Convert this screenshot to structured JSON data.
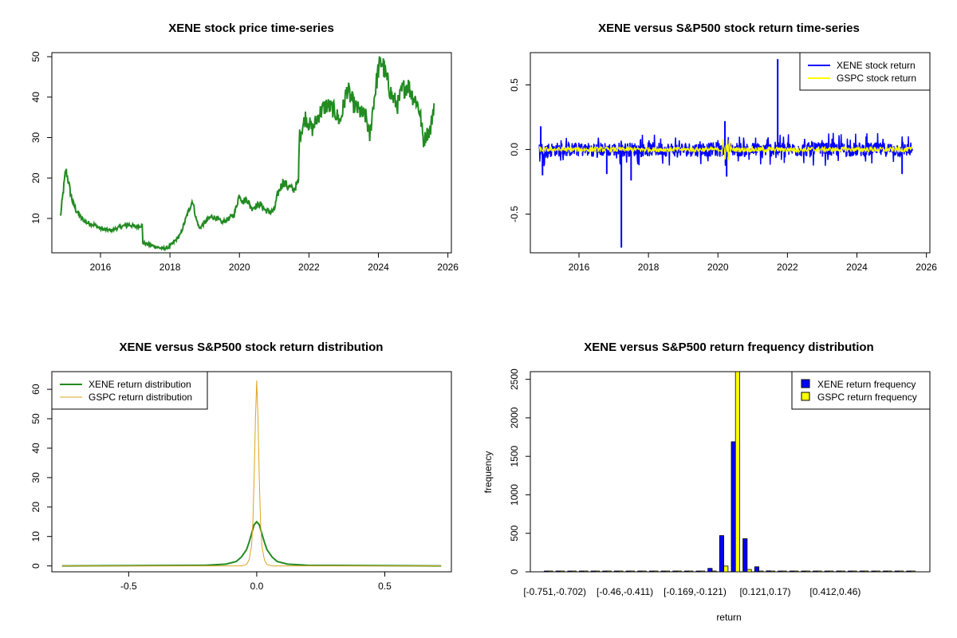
{
  "colors": {
    "green": "#228B22",
    "blue": "#0000FF",
    "yellow": "#FFFF00",
    "orange": "#DAA520",
    "black": "#000000"
  },
  "chart_data": [
    {
      "type": "line",
      "title": "XENE stock price time-series",
      "xlabel": "",
      "ylabel": "",
      "xlim": [
        2014.6,
        2026.1
      ],
      "ylim": [
        1.5,
        51
      ],
      "x_ticks": [
        2016,
        2018,
        2020,
        2022,
        2024,
        2026
      ],
      "x_tick_labels": [
        "2016",
        "2018",
        "2020",
        "2022",
        "2024",
        "2026"
      ],
      "y_ticks": [
        10,
        20,
        30,
        40,
        50
      ],
      "y_tick_labels": [
        "10",
        "20",
        "30",
        "40",
        "50"
      ],
      "series": [
        {
          "name": "XENE",
          "color": "#228B22",
          "x": [
            2014.85,
            2014.92,
            2015.0,
            2015.06,
            2015.12,
            2015.2,
            2015.3,
            2015.45,
            2015.6,
            2015.8,
            2016.0,
            2016.3,
            2016.6,
            2016.8,
            2017.0,
            2017.2,
            2017.22,
            2017.4,
            2017.6,
            2017.8,
            2017.95,
            2018.1,
            2018.3,
            2018.5,
            2018.65,
            2018.75,
            2018.85,
            2019.0,
            2019.2,
            2019.35,
            2019.5,
            2019.7,
            2019.85,
            2020.0,
            2020.1,
            2020.2,
            2020.35,
            2020.45,
            2020.6,
            2020.75,
            2020.9,
            2021.0,
            2021.1,
            2021.25,
            2021.4,
            2021.55,
            2021.7,
            2021.72,
            2021.9,
            2022.1,
            2022.3,
            2022.5,
            2022.7,
            2022.9,
            2023.1,
            2023.3,
            2023.5,
            2023.65,
            2023.75,
            2023.85,
            2024.0,
            2024.1,
            2024.25,
            2024.4,
            2024.55,
            2024.7,
            2024.85,
            2025.0,
            2025.1,
            2025.2,
            2025.3,
            2025.4,
            2025.5,
            2025.6
          ],
          "y": [
            10.5,
            16,
            22,
            20,
            17,
            14,
            12,
            10,
            9,
            8.5,
            7.5,
            7,
            8,
            8.5,
            8,
            8.3,
            4,
            3.5,
            3,
            2.5,
            2.8,
            4,
            6,
            11,
            14.5,
            10,
            7.5,
            9,
            10.5,
            10,
            9,
            10,
            11,
            16,
            14,
            15,
            12.5,
            13,
            13.5,
            12,
            11.5,
            12,
            16,
            19,
            18,
            17,
            19,
            30,
            35,
            32,
            36,
            38,
            37,
            34,
            42,
            38,
            36,
            35,
            30,
            38,
            47,
            49,
            44,
            40,
            38,
            42,
            43,
            40,
            39,
            36,
            29,
            31,
            32,
            38.5
          ]
        }
      ]
    },
    {
      "type": "line",
      "title": "XENE versus S&P500 stock return time-series",
      "xlabel": "",
      "ylabel": "",
      "xlim": [
        2014.6,
        2026.1
      ],
      "ylim": [
        -0.8,
        0.75
      ],
      "x_ticks": [
        2016,
        2018,
        2020,
        2022,
        2024,
        2026
      ],
      "x_tick_labels": [
        "2016",
        "2018",
        "2020",
        "2022",
        "2024",
        "2026"
      ],
      "y_ticks": [
        -0.5,
        0.0,
        0.5
      ],
      "y_tick_labels": [
        "-0.5",
        "0.0",
        "0.5"
      ],
      "legend": {
        "position": "top-right",
        "entries": [
          {
            "label": "XENE stock return",
            "color": "#0000FF"
          },
          {
            "label": "GSPC stock return",
            "color": "#FFFF00"
          }
        ]
      },
      "series": [
        {
          "name": "XENE stock return",
          "color": "#0000FF",
          "x_start": 2014.85,
          "x_end": 2025.6,
          "typical_range": [
            -0.08,
            0.08
          ],
          "spikes": [
            {
              "x": 2017.22,
              "y": -0.76
            },
            {
              "x": 2021.72,
              "y": 0.7
            },
            {
              "x": 2014.9,
              "y": 0.18
            },
            {
              "x": 2014.95,
              "y": -0.2
            },
            {
              "x": 2020.2,
              "y": 0.22
            },
            {
              "x": 2020.25,
              "y": -0.21
            },
            {
              "x": 2025.3,
              "y": -0.19
            },
            {
              "x": 2017.5,
              "y": -0.24
            },
            {
              "x": 2016.8,
              "y": -0.19
            }
          ]
        },
        {
          "name": "GSPC stock return",
          "color": "#FFFF00",
          "x_start": 2014.85,
          "x_end": 2025.6,
          "typical_range": [
            -0.02,
            0.02
          ]
        }
      ]
    },
    {
      "type": "line",
      "title": "XENE versus S&P500 stock return distribution",
      "xlabel": "",
      "ylabel": "",
      "xlim": [
        -0.8,
        0.76
      ],
      "ylim": [
        -2,
        66
      ],
      "x_ticks": [
        -0.5,
        0.0,
        0.5
      ],
      "x_tick_labels": [
        "-0.5",
        "0.0",
        "0.5"
      ],
      "y_ticks": [
        0,
        10,
        20,
        30,
        40,
        50,
        60
      ],
      "y_tick_labels": [
        "0",
        "10",
        "20",
        "30",
        "40",
        "50",
        "60"
      ],
      "legend": {
        "position": "top-left",
        "entries": [
          {
            "label": "XENE return distribution",
            "color": "#228B22"
          },
          {
            "label": "GSPC return distribution",
            "color": "#DAA520"
          }
        ]
      },
      "series": [
        {
          "name": "XENE return distribution",
          "color": "#228B22",
          "x": [
            -0.76,
            -0.2,
            -0.12,
            -0.08,
            -0.06,
            -0.04,
            -0.03,
            -0.02,
            -0.01,
            0.0,
            0.01,
            0.02,
            0.03,
            0.04,
            0.06,
            0.08,
            0.12,
            0.2,
            0.72
          ],
          "y": [
            0,
            0.2,
            0.6,
            1.5,
            3,
            5.5,
            8,
            11,
            14,
            15,
            14,
            11,
            8,
            5.5,
            3,
            1.5,
            0.6,
            0.2,
            0
          ]
        },
        {
          "name": "GSPC return distribution",
          "color": "#DAA520",
          "x": [
            -0.76,
            -0.06,
            -0.04,
            -0.03,
            -0.02,
            -0.015,
            -0.01,
            -0.005,
            0.0,
            0.005,
            0.01,
            0.015,
            0.02,
            0.03,
            0.04,
            0.06,
            0.72
          ],
          "y": [
            0,
            0,
            0.5,
            2,
            7,
            15,
            30,
            50,
            63,
            50,
            30,
            15,
            7,
            2,
            0.5,
            0,
            0
          ]
        }
      ]
    },
    {
      "type": "bar",
      "title": "XENE versus S&P500 return frequency distribution",
      "xlabel": "return",
      "ylabel": "frequency",
      "ylim": [
        0,
        2600
      ],
      "y_ticks": [
        0,
        500,
        1000,
        1500,
        2000,
        2500
      ],
      "y_tick_labels": [
        "0",
        "500",
        "1000",
        "1500",
        "2000",
        "2500"
      ],
      "category_count": 32,
      "x_tick_labels": [
        {
          "label": "[-0.751,-0.702)",
          "index": 0
        },
        {
          "label": "[-0.46,-0.411)",
          "index": 6
        },
        {
          "label": "[-0.169,-0.121)",
          "index": 12
        },
        {
          "label": "[0.121,0.17)",
          "index": 18
        },
        {
          "label": "[0.412,0.46)",
          "index": 24
        }
      ],
      "legend": {
        "position": "top-right",
        "entries": [
          {
            "label": "XENE return frequency",
            "color": "#0000FF"
          },
          {
            "label": "GSPC return frequency",
            "color": "#FFFF00"
          }
        ]
      },
      "series": [
        {
          "name": "XENE return frequency",
          "color": "#0000FF",
          "values": [
            1,
            0,
            0,
            0,
            0,
            0,
            0,
            0,
            0,
            0,
            0,
            0,
            3,
            5,
            45,
            470,
            1690,
            430,
            65,
            12,
            4,
            2,
            1,
            0,
            0,
            0,
            0,
            0,
            0,
            0,
            0,
            1
          ]
        },
        {
          "name": "GSPC return frequency",
          "color": "#FFFF00",
          "values": [
            0,
            0,
            0,
            0,
            0,
            0,
            0,
            0,
            0,
            0,
            0,
            0,
            0,
            0,
            0,
            75,
            2600,
            30,
            0,
            0,
            0,
            0,
            0,
            0,
            0,
            0,
            0,
            0,
            0,
            0,
            0,
            0
          ]
        }
      ]
    }
  ]
}
